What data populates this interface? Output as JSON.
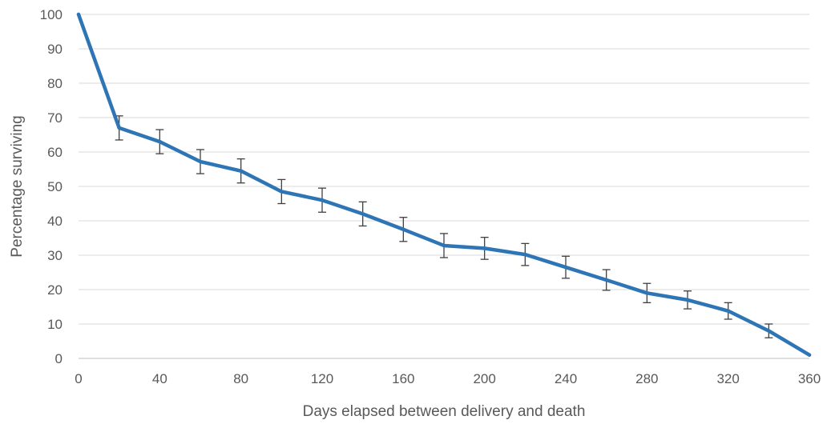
{
  "chart_data": {
    "type": "line",
    "title": "",
    "xlabel": "Days elapsed between delivery and death",
    "ylabel": "Percentage surviving",
    "xlim": [
      0,
      360
    ],
    "ylim": [
      0,
      100
    ],
    "x_ticks": [
      0,
      40,
      80,
      120,
      160,
      200,
      240,
      280,
      320,
      360
    ],
    "y_ticks": [
      0,
      10,
      20,
      30,
      40,
      50,
      60,
      70,
      80,
      90,
      100
    ],
    "grid": "horizontal",
    "legend": "none",
    "series": [
      {
        "color": "#2e75b6",
        "x": [
          0,
          20,
          40,
          60,
          80,
          100,
          120,
          140,
          160,
          180,
          200,
          220,
          240,
          260,
          280,
          300,
          320,
          340,
          360
        ],
        "y": [
          100,
          67,
          63,
          57.2,
          54.5,
          48.5,
          46,
          42,
          37.5,
          32.8,
          32,
          30.2,
          26.5,
          22.8,
          19,
          17,
          13.8,
          8,
          1
        ],
        "error": [
          0,
          3.5,
          3.5,
          3.5,
          3.5,
          3.5,
          3.5,
          3.5,
          3.5,
          3.5,
          3.2,
          3.2,
          3.2,
          3,
          2.8,
          2.6,
          2.4,
          2,
          0
        ]
      }
    ]
  }
}
